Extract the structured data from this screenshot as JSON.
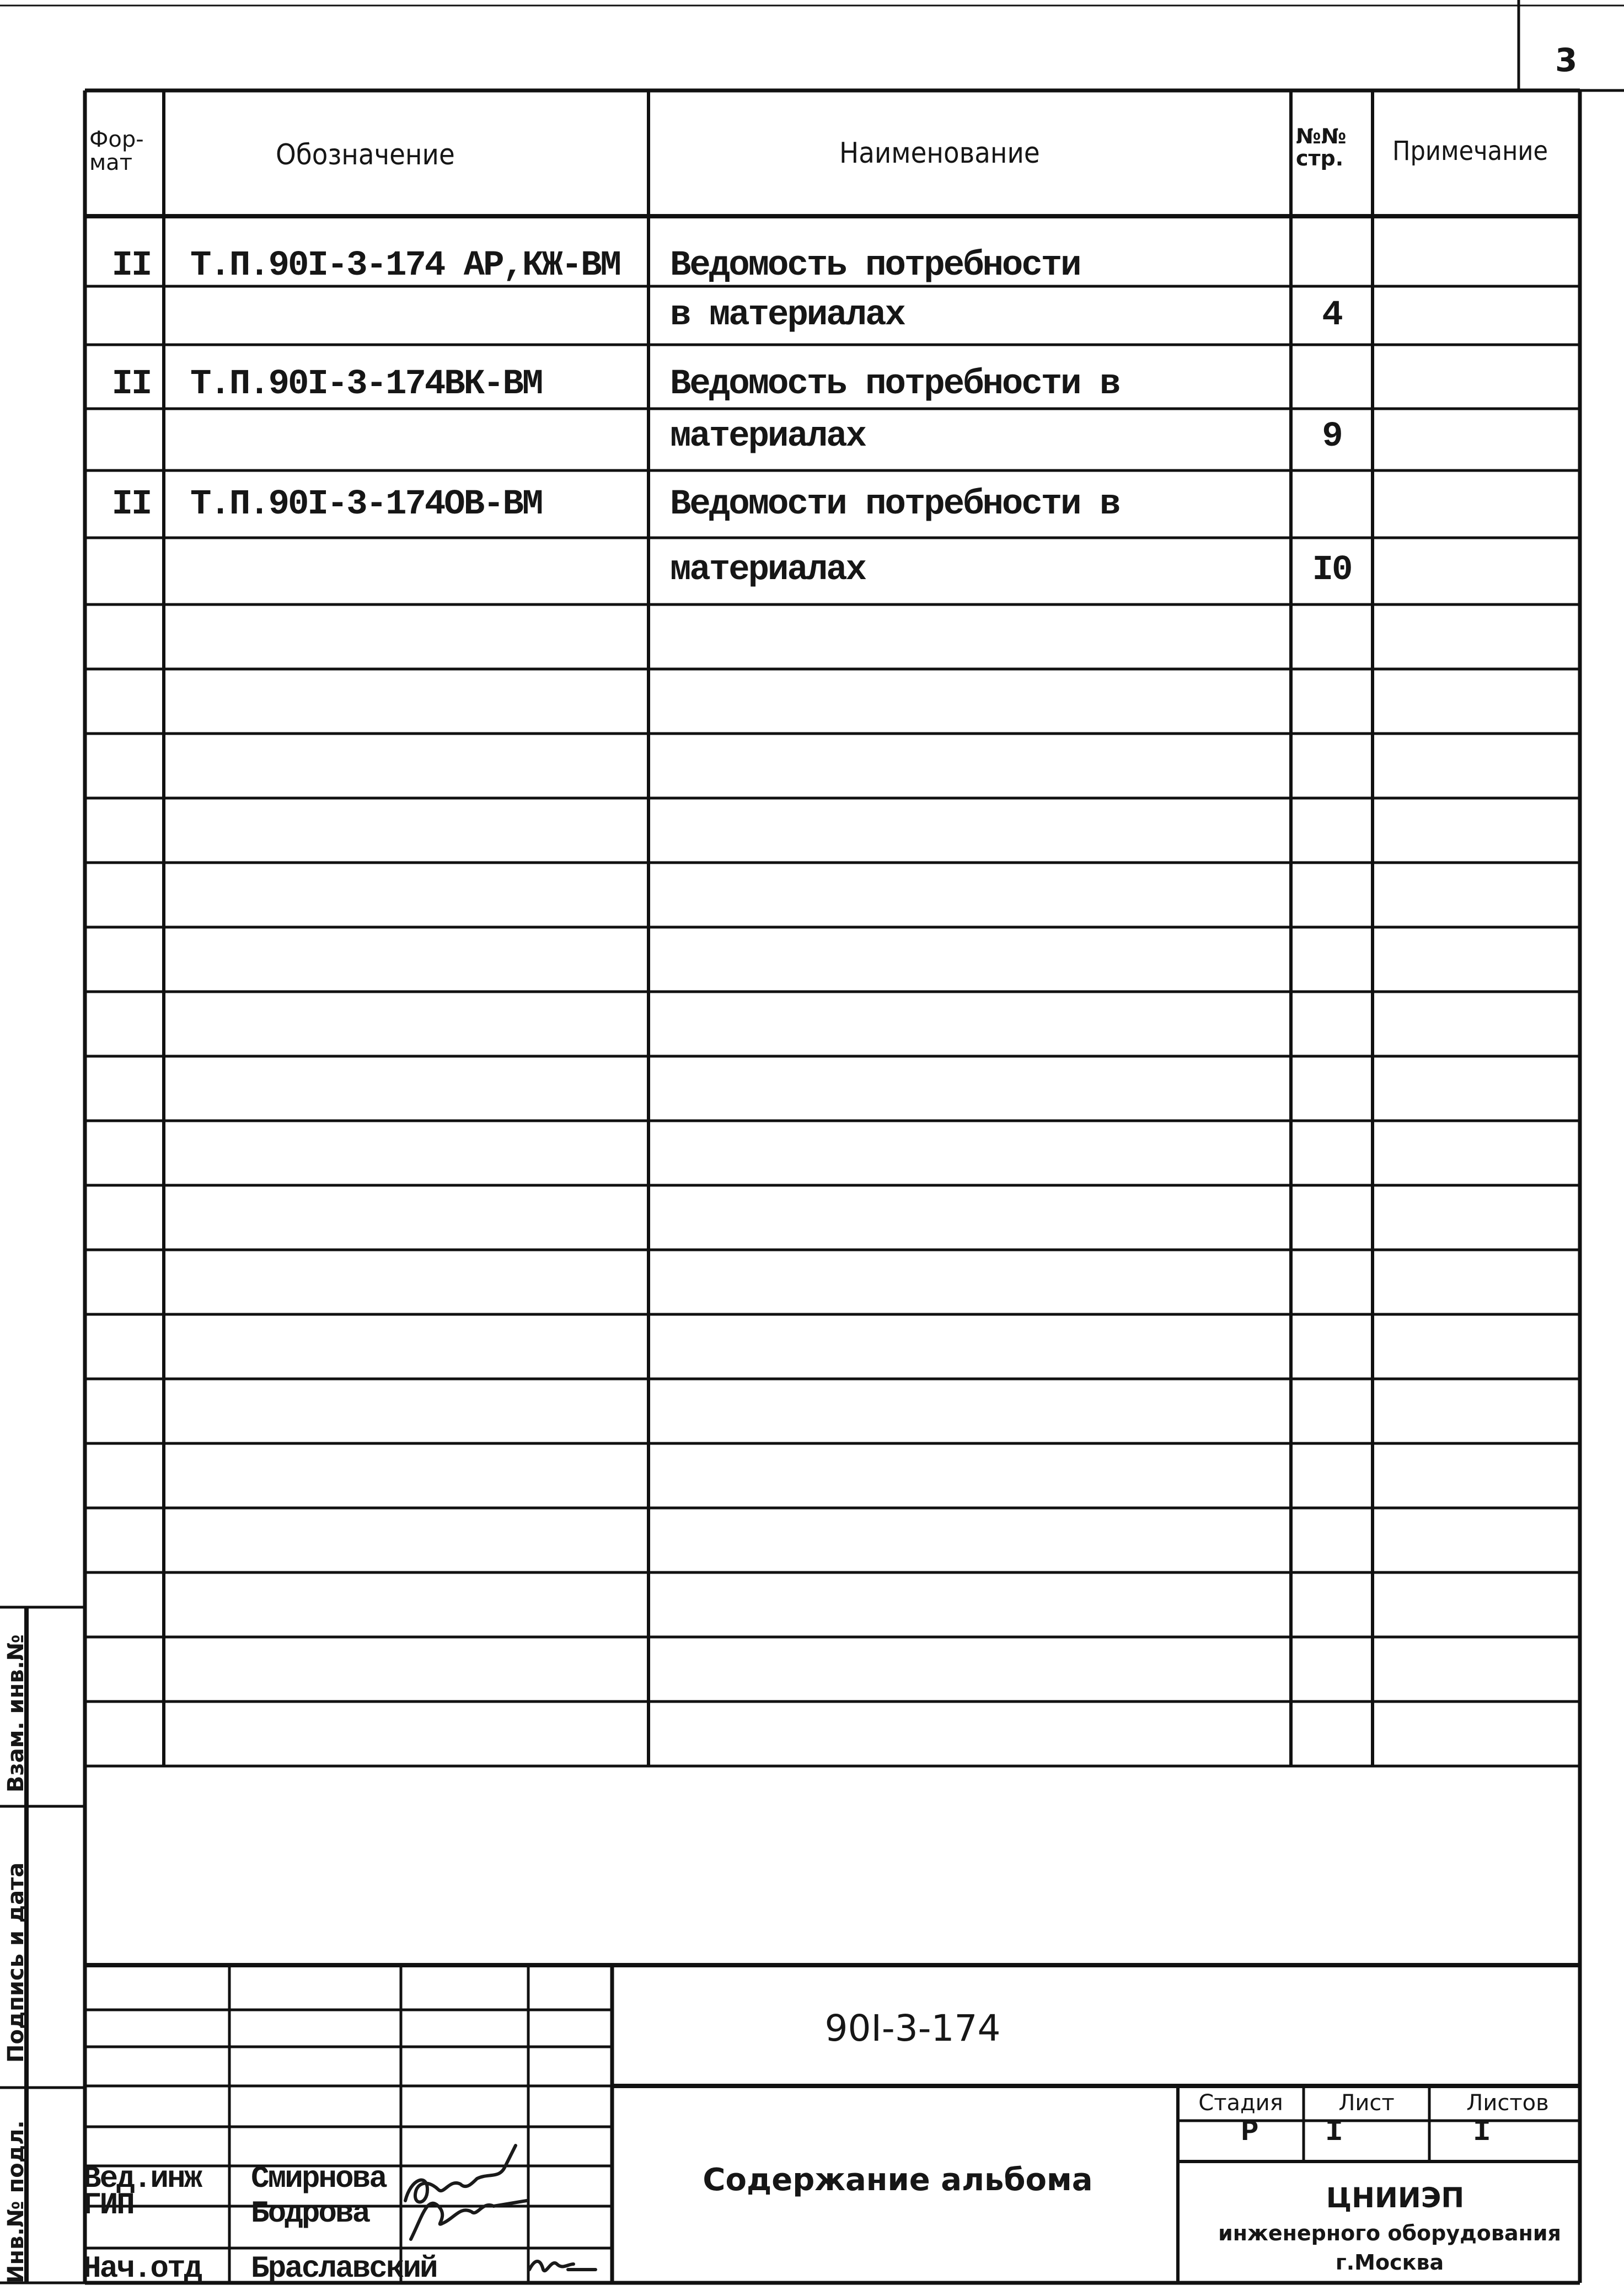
{
  "page_number": "3",
  "table": {
    "headers": {
      "format": [
        "Фор-",
        "мат"
      ],
      "designation": "Обозначение",
      "name": "Наименование",
      "page": [
        "№№",
        "стр."
      ],
      "note": "Примечание"
    },
    "rows": [
      {
        "format": "II",
        "designation": "Т.П.90I-3-174 АР,КЖ-ВМ",
        "name": "Ведомость потребности",
        "page": ""
      },
      {
        "format": "",
        "designation": "",
        "name": "в материалах",
        "page": "4"
      },
      {
        "format": "II",
        "designation": "Т.П.90I-3-174ВК-ВМ",
        "name": "Ведомость потребности в",
        "page": ""
      },
      {
        "format": "",
        "designation": "",
        "name": "материалах",
        "page": "9"
      },
      {
        "format": "II",
        "designation": "Т.П.90I-3-174ОВ-ВМ",
        "name": "Ведомости потребности в",
        "page": ""
      },
      {
        "format": "",
        "designation": "",
        "name": "материалах",
        "page": "I0"
      }
    ]
  },
  "side_stamp": {
    "inv_orig": "Инв.№ подл.",
    "sign_date": "Подпись и дата",
    "replace_inv": "Взам. инв.№"
  },
  "title_block": {
    "doc_code": "90I-3-174",
    "doc_title": "Содержание альбома",
    "stage_label": "Стадия",
    "sheet_label": "Лист",
    "sheets_label": "Листов",
    "stage_value": "Р",
    "sheet_value": "I",
    "sheets_value": "I",
    "org_name": "ЦНИИЭП",
    "org_line2": "инженерного оборудования",
    "org_city": "г.Москва",
    "people": [
      {
        "role": "Вед.инж",
        "name": "Смирнова"
      },
      {
        "role": "ГИП",
        "name": "Бодрова"
      },
      {
        "role": "Нач.отд",
        "name": "Браславский"
      }
    ]
  }
}
